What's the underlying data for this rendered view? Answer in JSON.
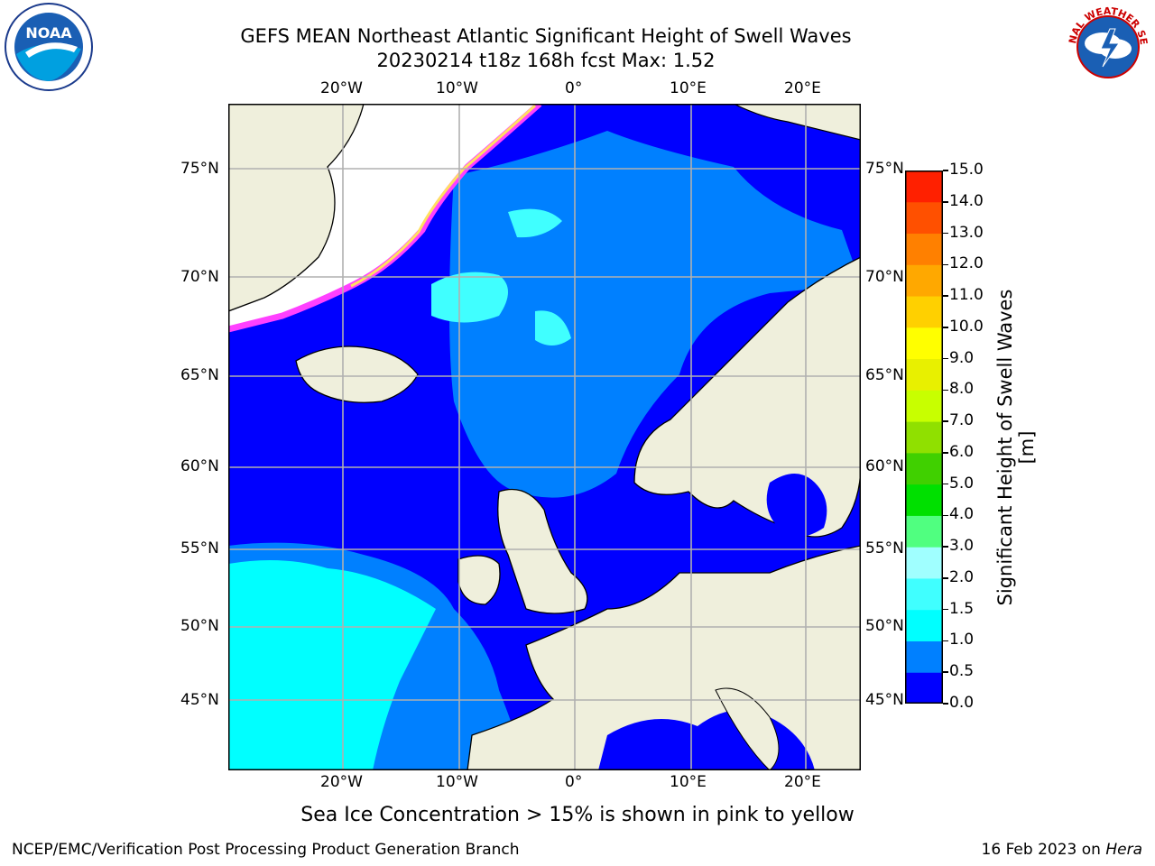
{
  "header": {
    "title_line1": "GEFS MEAN Northeast Atlantic Significant Height of Swell Waves",
    "title_line2": "20230214 t18z 168h fcst   Max: 1.52"
  },
  "logos": {
    "left": "NOAA",
    "right_text": "NATIONAL WEATHER SERVICE"
  },
  "map": {
    "lon_ticks": [
      "20°W",
      "10°W",
      "0°",
      "10°E",
      "20°E"
    ],
    "lat_ticks": [
      "75°N",
      "70°N",
      "65°N",
      "60°N",
      "55°N",
      "50°N",
      "45°N"
    ],
    "colors": {
      "ocean_deep": "#0000ff",
      "ocean_mid": "#0080ff",
      "ocean_light": "#00ffff",
      "ocean_pale": "#40ffff",
      "land": "#efefdc",
      "ice_pink": "#ff40ff",
      "ice_yellow": "#ffe060",
      "grid": "#b0b0b0"
    }
  },
  "colorbar": {
    "label": "Significant Height of Swell Waves [m]",
    "ticks": [
      "15.0",
      "14.0",
      "13.0",
      "12.0",
      "11.0",
      "10.0",
      "9.0",
      "8.0",
      "7.0",
      "6.0",
      "5.0",
      "4.0",
      "3.0",
      "2.0",
      "1.5",
      "1.0",
      "0.5",
      "0.0"
    ],
    "colors": [
      "#0000ff",
      "#0080ff",
      "#00ffff",
      "#40ffff",
      "#a0ffff",
      "#50ff80",
      "#00e000",
      "#40d000",
      "#90e000",
      "#c8ff00",
      "#e8f000",
      "#ffff00",
      "#ffd000",
      "#ffa800",
      "#ff8000",
      "#ff5000",
      "#ff2000"
    ]
  },
  "caption": "Sea Ice Concentration > 15% is shown in pink to yellow",
  "footer": {
    "left": "NCEP/EMC/Verification Post Processing Product Generation Branch",
    "right_date": "16 Feb 2023 on ",
    "right_host": "Hera"
  }
}
